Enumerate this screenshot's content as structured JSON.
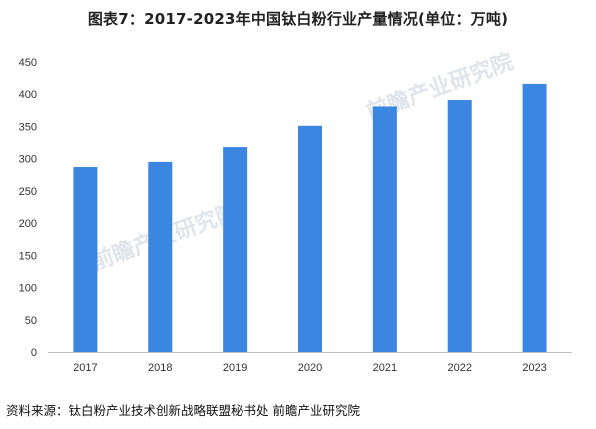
{
  "header": {
    "title": "图表7：2017-2023年中国钛白粉行业产量情况(单位：万吨)"
  },
  "watermark": {
    "text": "前瞻产业研究院"
  },
  "source": {
    "text": "资料来源：钛白粉产业技术创新战略联盟秘书处 前瞻产业研究院"
  },
  "colors": {
    "bar": "#3a86e0",
    "axis": "#bfbfbf"
  },
  "chart_data": {
    "type": "bar",
    "title": "图表7：2017-2023年中国钛白粉行业产量情况(单位：万吨)",
    "categories": [
      "2017",
      "2018",
      "2019",
      "2020",
      "2021",
      "2022",
      "2023"
    ],
    "values": [
      287,
      295,
      318,
      351,
      381,
      391,
      416
    ],
    "xlabel": "",
    "ylabel": "",
    "ylim": [
      0,
      450
    ],
    "yticks": [
      0,
      50,
      100,
      150,
      200,
      250,
      300,
      350,
      400,
      450
    ],
    "grid": false,
    "legend": "none"
  }
}
